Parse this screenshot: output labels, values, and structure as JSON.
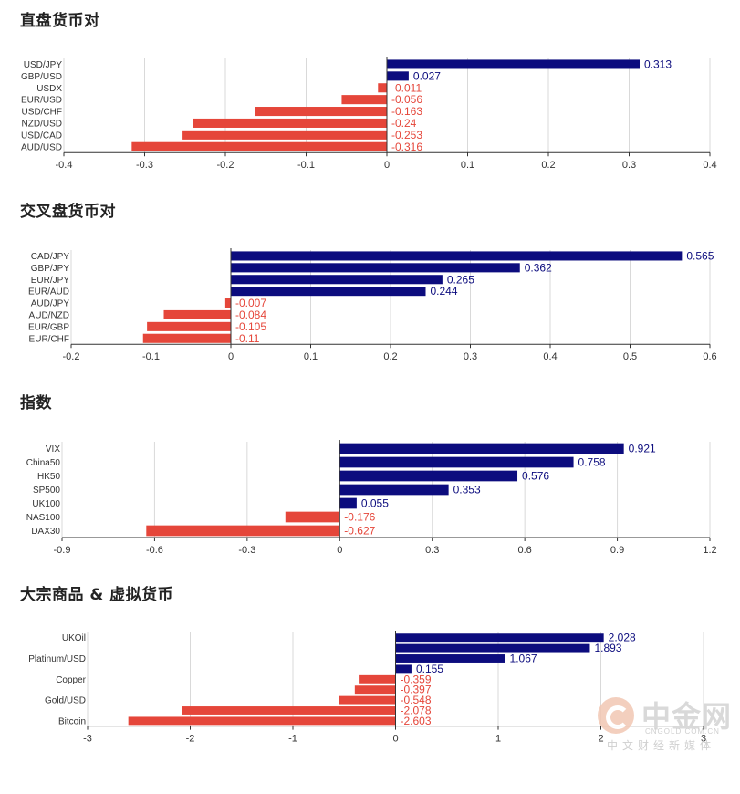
{
  "colors": {
    "positive": "#0c0c7e",
    "negative": "#e5463a",
    "grid": "#d9d9d9",
    "axis": "#333333"
  },
  "chart_data": [
    {
      "type": "bar",
      "title": "直盘货币对",
      "orientation": "horizontal",
      "categories": [
        "USD/JPY",
        "GBP/USD",
        "USDX",
        "EUR/USD",
        "USD/CHF",
        "NZD/USD",
        "USD/CAD",
        "AUD/USD"
      ],
      "values": [
        0.313,
        0.027,
        -0.011,
        -0.056,
        -0.163,
        -0.24,
        -0.253,
        -0.316
      ],
      "value_labels": [
        "0.313",
        "0.027",
        "-0.011",
        "-0.056",
        "-0.163",
        "-0.24",
        "-0.253",
        "-0.316"
      ],
      "xlim": [
        -0.4,
        0.4
      ],
      "xticks": [
        -0.4,
        -0.3,
        -0.2,
        -0.1,
        0,
        0.1,
        0.2,
        0.3,
        0.4
      ],
      "xtick_labels": [
        "-0.4",
        "-0.3",
        "-0.2",
        "-0.1",
        "0",
        "0.1",
        "0.2",
        "0.3",
        "0.4"
      ],
      "grid": true
    },
    {
      "type": "bar",
      "title": "交叉盘货币对",
      "orientation": "horizontal",
      "categories": [
        "CAD/JPY",
        "GBP/JPY",
        "EUR/JPY",
        "EUR/AUD",
        "AUD/JPY",
        "AUD/NZD",
        "EUR/GBP",
        "EUR/CHF"
      ],
      "values": [
        0.565,
        0.362,
        0.265,
        0.244,
        -0.007,
        -0.084,
        -0.105,
        -0.11
      ],
      "value_labels": [
        "0.565",
        "0.362",
        "0.265",
        "0.244",
        "-0.007",
        "-0.084",
        "-0.105",
        "-0.11"
      ],
      "xlim": [
        -0.2,
        0.6
      ],
      "xticks": [
        -0.2,
        -0.1,
        0,
        0.1,
        0.2,
        0.3,
        0.4,
        0.5,
        0.6
      ],
      "xtick_labels": [
        "-0.2",
        "-0.1",
        "0",
        "0.1",
        "0.2",
        "0.3",
        "0.4",
        "0.5",
        "0.6"
      ],
      "grid": true
    },
    {
      "type": "bar",
      "title": "指数",
      "orientation": "horizontal",
      "categories": [
        "VIX",
        "China50",
        "HK50",
        "SP500",
        "UK100",
        "NAS100",
        "DAX30"
      ],
      "values": [
        0.921,
        0.758,
        0.576,
        0.353,
        0.055,
        -0.176,
        -0.627
      ],
      "value_labels": [
        "0.921",
        "0.758",
        "0.576",
        "0.353",
        "0.055",
        "-0.176",
        "-0.627"
      ],
      "xlim": [
        -0.9,
        1.2
      ],
      "xticks": [
        -0.9,
        -0.6,
        -0.3,
        0,
        0.3,
        0.6,
        0.9,
        1.2
      ],
      "xtick_labels": [
        "-0.9",
        "-0.6",
        "-0.3",
        "0",
        "0.3",
        "0.6",
        "0.9",
        "1.2"
      ],
      "grid": true
    },
    {
      "type": "bar",
      "title": "大宗商品 & 虚拟货币",
      "orientation": "horizontal",
      "categories": [
        "UKOil",
        "",
        "Platinum/USD",
        "",
        "Copper",
        "",
        "Gold/USD",
        "",
        "Bitcoin"
      ],
      "values": [
        2.028,
        1.893,
        1.067,
        0.155,
        -0.359,
        -0.397,
        -0.548,
        -2.078,
        -2.603
      ],
      "value_labels": [
        "2.028",
        "1.893",
        "1.067",
        "0.155",
        "-0.359",
        "-0.397",
        "-0.548",
        "-2.078",
        "-2.603"
      ],
      "xlim": [
        -3,
        3
      ],
      "xticks": [
        -3,
        -2,
        -1,
        0,
        1,
        2,
        3
      ],
      "xtick_labels": [
        "-3",
        "-2",
        "-1",
        "0",
        "1",
        "2",
        "3"
      ],
      "grid": true
    }
  ],
  "watermark": {
    "name": "中金网",
    "domain": "CNGOLD.COM.CN",
    "tagline": "中文财经新媒体"
  }
}
